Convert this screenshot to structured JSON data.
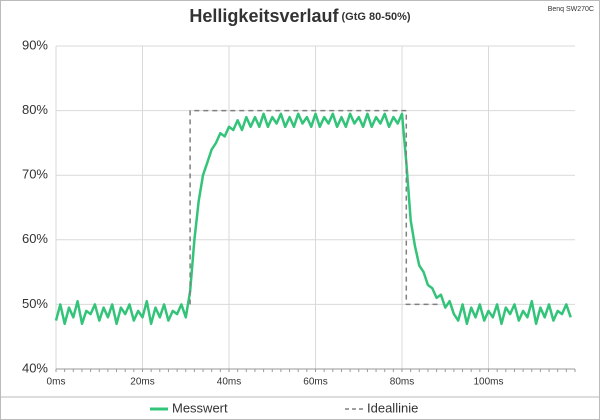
{
  "chart_data": {
    "type": "line",
    "title": "Helligkeitsverlauf",
    "subtitle": "(GtG 80-50%)",
    "note": "Benq SW270C",
    "xlim": [
      0,
      120
    ],
    "ylim": [
      40,
      90
    ],
    "xticks": [
      {
        "value": 0,
        "label": "0ms"
      },
      {
        "value": 20,
        "label": "20ms"
      },
      {
        "value": 40,
        "label": "40ms"
      },
      {
        "value": 60,
        "label": "60ms"
      },
      {
        "value": 80,
        "label": "80ms"
      },
      {
        "value": 100,
        "label": "100ms"
      }
    ],
    "yticks": [
      {
        "value": 40,
        "label": "40%"
      },
      {
        "value": 50,
        "label": "50%"
      },
      {
        "value": 60,
        "label": "60%"
      },
      {
        "value": 70,
        "label": "70%"
      },
      {
        "value": 80,
        "label": "80%"
      },
      {
        "value": 90,
        "label": "90%"
      }
    ],
    "grid": true,
    "legend": "bottom",
    "series": [
      {
        "name": "Messwert",
        "color": "#33c47a",
        "style": "solid",
        "x": [
          0,
          1,
          2,
          3,
          4,
          5,
          6,
          7,
          8,
          9,
          10,
          11,
          12,
          13,
          14,
          15,
          16,
          17,
          18,
          19,
          20,
          21,
          22,
          23,
          24,
          25,
          26,
          27,
          28,
          29,
          30,
          31,
          32,
          33,
          34,
          35,
          36,
          37,
          38,
          39,
          40,
          41,
          42,
          43,
          44,
          45,
          46,
          47,
          48,
          49,
          50,
          51,
          52,
          53,
          54,
          55,
          56,
          57,
          58,
          59,
          60,
          61,
          62,
          63,
          64,
          65,
          66,
          67,
          68,
          69,
          70,
          71,
          72,
          73,
          74,
          75,
          76,
          77,
          78,
          79,
          80,
          81,
          82,
          83,
          84,
          85,
          86,
          87,
          88,
          89,
          90,
          91,
          92,
          93,
          94,
          95,
          96,
          97,
          98,
          99,
          100,
          101,
          102,
          103,
          104,
          105,
          106,
          107,
          108,
          109,
          110,
          111,
          112,
          113,
          114,
          115,
          116,
          117,
          118,
          119
        ],
        "values": [
          47.5,
          50,
          47,
          49.5,
          48,
          50.5,
          47,
          49,
          48.5,
          50,
          47.5,
          49.5,
          48,
          50,
          47,
          49.5,
          48.5,
          50,
          47.5,
          49,
          48,
          50.5,
          47,
          49.5,
          48,
          50,
          47.5,
          49,
          48.5,
          50,
          48,
          52,
          60,
          66,
          70,
          72,
          74,
          75,
          76.5,
          76,
          77.5,
          77,
          78.5,
          77,
          79,
          77.5,
          79,
          77.5,
          79.5,
          77.5,
          79,
          78,
          79.5,
          77.5,
          79,
          77.5,
          79.5,
          78,
          79,
          77.5,
          79.5,
          77.5,
          79,
          78,
          79.5,
          77.5,
          79,
          77.5,
          79.5,
          78,
          79,
          77.5,
          79.5,
          77.5,
          79,
          78,
          79.5,
          77.5,
          79,
          78,
          79.5,
          72,
          63,
          59,
          56,
          55,
          53,
          52.5,
          51,
          51.5,
          49.5,
          50.5,
          48.5,
          47.5,
          50,
          47,
          49.5,
          48,
          50,
          47.5,
          49,
          48,
          50,
          47,
          49.5,
          48.5,
          50,
          47.5,
          49,
          48,
          50.5,
          47,
          49.5,
          48,
          50,
          47.5,
          49,
          48.5,
          50,
          48
        ]
      },
      {
        "name": "Ideallinie",
        "color": "#808080",
        "style": "dashed",
        "x": [
          31,
          31,
          81,
          81,
          89
        ],
        "values": [
          50,
          80,
          80,
          50,
          50
        ]
      }
    ]
  }
}
